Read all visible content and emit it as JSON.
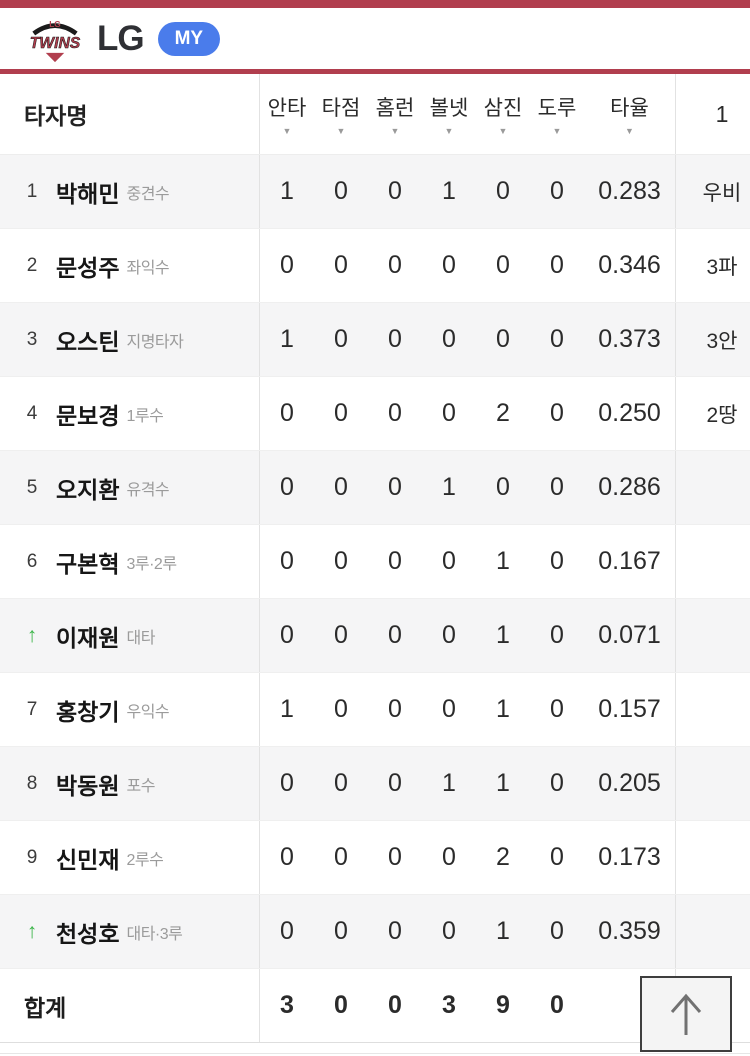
{
  "colors": {
    "accent_maroon": "#b13e4e",
    "badge_blue": "#4a7ceb",
    "substitution_green": "#3cb54a",
    "row_alt_gray": "#f5f5f6"
  },
  "icons": {
    "sort": "▼",
    "substitution_arrow": "↑",
    "scroll_top_arrow": "↑"
  },
  "header": {
    "logo_top": "LG",
    "logo_main": "TWINS",
    "title": "LG",
    "my_badge": "MY"
  },
  "table": {
    "name_header": "타자명",
    "stat_headers": [
      "안타",
      "타점",
      "홈런",
      "볼넷",
      "삼진",
      "도루",
      "타율"
    ],
    "inning_header": "1",
    "rows": [
      {
        "order": "1",
        "sub": false,
        "name": "박해민",
        "position": "중견수",
        "stats": [
          "1",
          "0",
          "0",
          "1",
          "0",
          "0",
          "0.283"
        ],
        "inning": "우비"
      },
      {
        "order": "2",
        "sub": false,
        "name": "문성주",
        "position": "좌익수",
        "stats": [
          "0",
          "0",
          "0",
          "0",
          "0",
          "0",
          "0.346"
        ],
        "inning": "3파"
      },
      {
        "order": "3",
        "sub": false,
        "name": "오스틴",
        "position": "지명타자",
        "stats": [
          "1",
          "0",
          "0",
          "0",
          "0",
          "0",
          "0.373"
        ],
        "inning": "3안"
      },
      {
        "order": "4",
        "sub": false,
        "name": "문보경",
        "position": "1루수",
        "stats": [
          "0",
          "0",
          "0",
          "0",
          "2",
          "0",
          "0.250"
        ],
        "inning": "2땅"
      },
      {
        "order": "5",
        "sub": false,
        "name": "오지환",
        "position": "유격수",
        "stats": [
          "0",
          "0",
          "0",
          "1",
          "0",
          "0",
          "0.286"
        ],
        "inning": ""
      },
      {
        "order": "6",
        "sub": false,
        "name": "구본혁",
        "position": "3루·2루",
        "stats": [
          "0",
          "0",
          "0",
          "0",
          "1",
          "0",
          "0.167"
        ],
        "inning": ""
      },
      {
        "order": "",
        "sub": true,
        "name": "이재원",
        "position": "대타",
        "stats": [
          "0",
          "0",
          "0",
          "0",
          "1",
          "0",
          "0.071"
        ],
        "inning": ""
      },
      {
        "order": "7",
        "sub": false,
        "name": "홍창기",
        "position": "우익수",
        "stats": [
          "1",
          "0",
          "0",
          "0",
          "1",
          "0",
          "0.157"
        ],
        "inning": ""
      },
      {
        "order": "8",
        "sub": false,
        "name": "박동원",
        "position": "포수",
        "stats": [
          "0",
          "0",
          "0",
          "1",
          "1",
          "0",
          "0.205"
        ],
        "inning": ""
      },
      {
        "order": "9",
        "sub": false,
        "name": "신민재",
        "position": "2루수",
        "stats": [
          "0",
          "0",
          "0",
          "0",
          "2",
          "0",
          "0.173"
        ],
        "inning": ""
      },
      {
        "order": "",
        "sub": true,
        "name": "천성호",
        "position": "대타·3루",
        "stats": [
          "0",
          "0",
          "0",
          "0",
          "1",
          "0",
          "0.359"
        ],
        "inning": ""
      }
    ],
    "total": {
      "label": "합계",
      "stats": [
        "3",
        "0",
        "0",
        "3",
        "9",
        "0",
        ""
      ]
    }
  }
}
